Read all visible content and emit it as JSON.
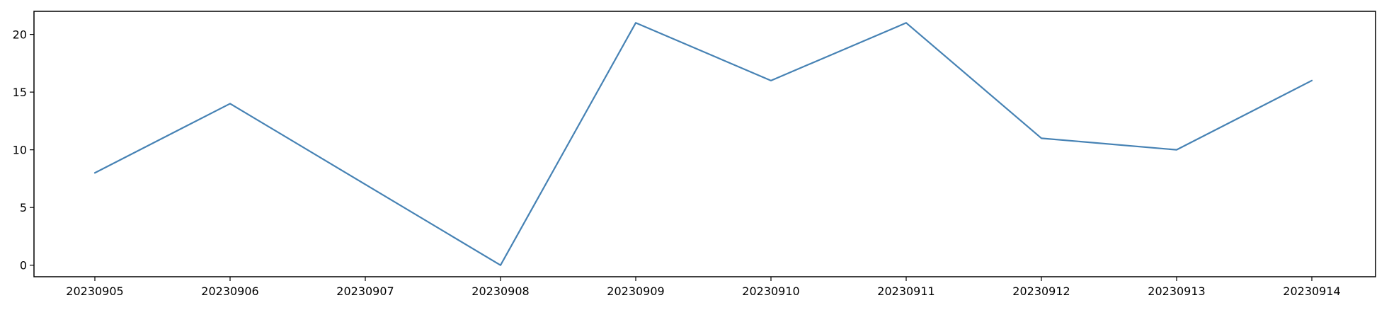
{
  "chart_data": {
    "type": "line",
    "title": "",
    "xlabel": "",
    "ylabel": "",
    "categories": [
      "20230905",
      "20230906",
      "20230907",
      "20230908",
      "20230909",
      "20230910",
      "20230911",
      "20230912",
      "20230913",
      "20230914"
    ],
    "series": [
      {
        "values": [
          8,
          14,
          7,
          0,
          21,
          16,
          21,
          11,
          10,
          16
        ],
        "color": "#4682b4"
      }
    ],
    "ylim": [
      -1,
      22
    ],
    "yticks": [
      0,
      5,
      10,
      15,
      20
    ],
    "grid": false,
    "legend": "none"
  }
}
